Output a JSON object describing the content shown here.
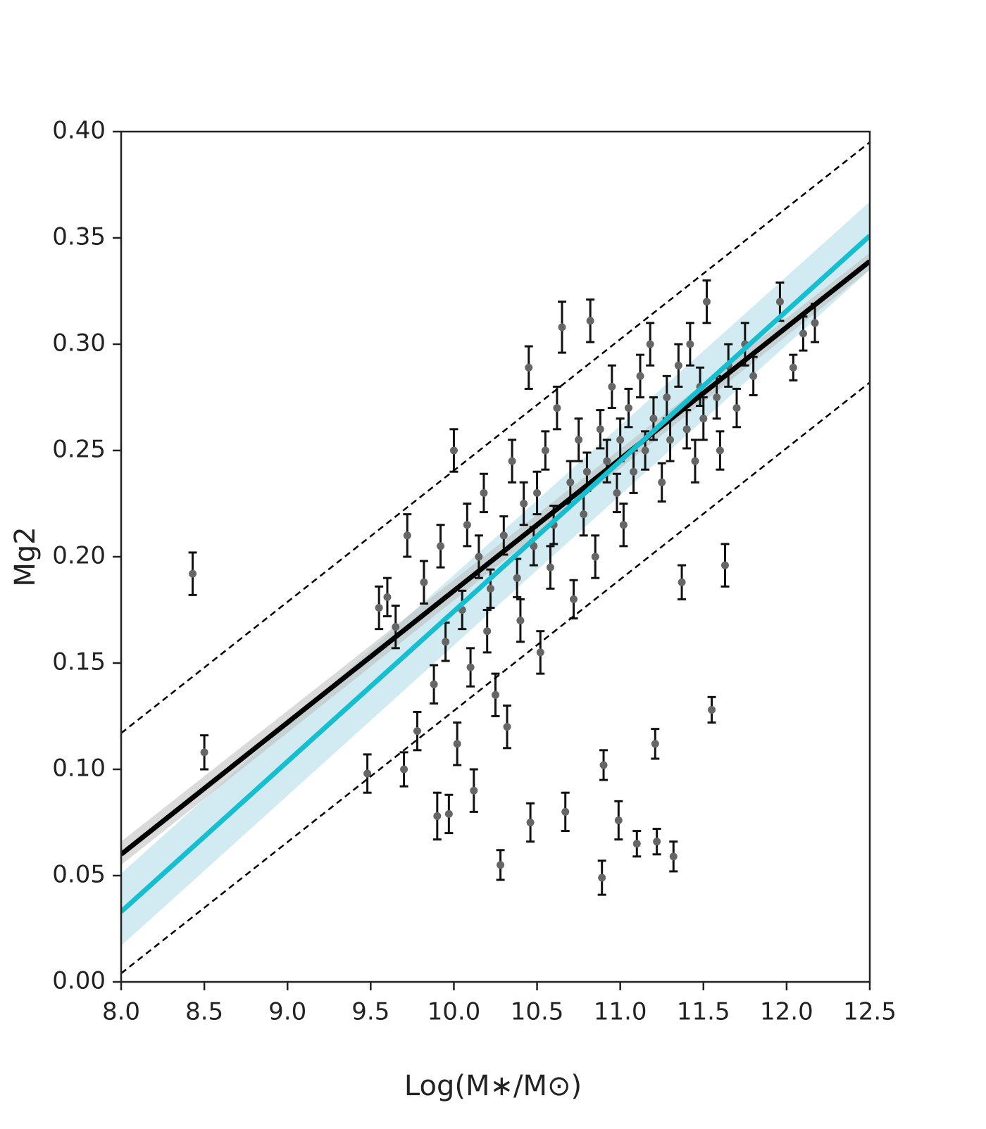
{
  "chart_data": {
    "type": "scatter",
    "xlabel": "Log(M∗/M⊙)",
    "ylabel": "Mg2",
    "xlim": [
      8.0,
      12.5
    ],
    "ylim": [
      0.0,
      0.4
    ],
    "xticks": [
      {
        "value": 8.0,
        "label": "8.0"
      },
      {
        "value": 8.5,
        "label": "8.5"
      },
      {
        "value": 9.0,
        "label": "9.0"
      },
      {
        "value": 9.5,
        "label": "9.5"
      },
      {
        "value": 10.0,
        "label": "10.0"
      },
      {
        "value": 10.5,
        "label": "10.5"
      },
      {
        "value": 11.0,
        "label": "11.0"
      },
      {
        "value": 11.5,
        "label": "11.5"
      },
      {
        "value": 12.0,
        "label": "12.0"
      },
      {
        "value": 12.5,
        "label": "12.5"
      }
    ],
    "yticks": [
      {
        "value": 0.0,
        "label": "0.00"
      },
      {
        "value": 0.05,
        "label": "0.05"
      },
      {
        "value": 0.1,
        "label": "0.10"
      },
      {
        "value": 0.15,
        "label": "0.15"
      },
      {
        "value": 0.2,
        "label": "0.20"
      },
      {
        "value": 0.25,
        "label": "0.25"
      },
      {
        "value": 0.3,
        "label": "0.30"
      },
      {
        "value": 0.35,
        "label": "0.35"
      },
      {
        "value": 0.4,
        "label": "0.40"
      }
    ],
    "point_color": "#666666",
    "error_color": "#111111",
    "fit_x": [
      8.0,
      12.5
    ],
    "bands": [
      {
        "color": "#add8e6",
        "lower": [
          0.017,
          0.335
        ],
        "upper": [
          0.051,
          0.367
        ]
      },
      {
        "color": "#bbbbbb",
        "lower": [
          0.055,
          0.335
        ],
        "upper": [
          0.066,
          0.343
        ]
      }
    ],
    "fits": [
      {
        "color": "#000000",
        "style": "solid",
        "values": [
          0.06,
          0.339
        ]
      },
      {
        "color": "#17becf",
        "style": "solid",
        "values": [
          0.033,
          0.351
        ]
      },
      {
        "color": "#000000",
        "style": "dashed",
        "values": [
          0.117,
          0.395
        ]
      },
      {
        "color": "#000000",
        "style": "dashed",
        "values": [
          0.004,
          0.282
        ]
      }
    ],
    "points": [
      {
        "x": 8.43,
        "y": 0.192,
        "err": 0.01
      },
      {
        "x": 8.5,
        "y": 0.108,
        "err": 0.008
      },
      {
        "x": 9.48,
        "y": 0.098,
        "err": 0.009
      },
      {
        "x": 9.55,
        "y": 0.176,
        "err": 0.01
      },
      {
        "x": 9.6,
        "y": 0.181,
        "err": 0.009
      },
      {
        "x": 9.65,
        "y": 0.167,
        "err": 0.01
      },
      {
        "x": 9.7,
        "y": 0.1,
        "err": 0.008
      },
      {
        "x": 9.72,
        "y": 0.21,
        "err": 0.01
      },
      {
        "x": 9.78,
        "y": 0.118,
        "err": 0.009
      },
      {
        "x": 9.82,
        "y": 0.188,
        "err": 0.01
      },
      {
        "x": 9.88,
        "y": 0.14,
        "err": 0.009
      },
      {
        "x": 9.9,
        "y": 0.078,
        "err": 0.011
      },
      {
        "x": 9.92,
        "y": 0.205,
        "err": 0.01
      },
      {
        "x": 9.95,
        "y": 0.16,
        "err": 0.009
      },
      {
        "x": 9.97,
        "y": 0.079,
        "err": 0.009
      },
      {
        "x": 10.0,
        "y": 0.25,
        "err": 0.01
      },
      {
        "x": 10.02,
        "y": 0.112,
        "err": 0.01
      },
      {
        "x": 10.05,
        "y": 0.175,
        "err": 0.009
      },
      {
        "x": 10.08,
        "y": 0.215,
        "err": 0.01
      },
      {
        "x": 10.1,
        "y": 0.148,
        "err": 0.009
      },
      {
        "x": 10.12,
        "y": 0.09,
        "err": 0.01
      },
      {
        "x": 10.15,
        "y": 0.2,
        "err": 0.01
      },
      {
        "x": 10.18,
        "y": 0.23,
        "err": 0.009
      },
      {
        "x": 10.2,
        "y": 0.165,
        "err": 0.01
      },
      {
        "x": 10.22,
        "y": 0.185,
        "err": 0.009
      },
      {
        "x": 10.25,
        "y": 0.135,
        "err": 0.01
      },
      {
        "x": 10.28,
        "y": 0.055,
        "err": 0.007
      },
      {
        "x": 10.3,
        "y": 0.21,
        "err": 0.009
      },
      {
        "x": 10.32,
        "y": 0.12,
        "err": 0.01
      },
      {
        "x": 10.35,
        "y": 0.245,
        "err": 0.01
      },
      {
        "x": 10.38,
        "y": 0.19,
        "err": 0.009
      },
      {
        "x": 10.4,
        "y": 0.17,
        "err": 0.01
      },
      {
        "x": 10.42,
        "y": 0.225,
        "err": 0.01
      },
      {
        "x": 10.45,
        "y": 0.289,
        "err": 0.01
      },
      {
        "x": 10.46,
        "y": 0.075,
        "err": 0.009
      },
      {
        "x": 10.48,
        "y": 0.205,
        "err": 0.009
      },
      {
        "x": 10.5,
        "y": 0.23,
        "err": 0.01
      },
      {
        "x": 10.52,
        "y": 0.155,
        "err": 0.01
      },
      {
        "x": 10.55,
        "y": 0.25,
        "err": 0.009
      },
      {
        "x": 10.58,
        "y": 0.195,
        "err": 0.01
      },
      {
        "x": 10.6,
        "y": 0.215,
        "err": 0.009
      },
      {
        "x": 10.62,
        "y": 0.27,
        "err": 0.01
      },
      {
        "x": 10.65,
        "y": 0.308,
        "err": 0.012
      },
      {
        "x": 10.67,
        "y": 0.08,
        "err": 0.009
      },
      {
        "x": 10.7,
        "y": 0.235,
        "err": 0.01
      },
      {
        "x": 10.72,
        "y": 0.18,
        "err": 0.009
      },
      {
        "x": 10.75,
        "y": 0.255,
        "err": 0.01
      },
      {
        "x": 10.78,
        "y": 0.22,
        "err": 0.01
      },
      {
        "x": 10.8,
        "y": 0.24,
        "err": 0.009
      },
      {
        "x": 10.82,
        "y": 0.311,
        "err": 0.01
      },
      {
        "x": 10.85,
        "y": 0.2,
        "err": 0.01
      },
      {
        "x": 10.88,
        "y": 0.26,
        "err": 0.009
      },
      {
        "x": 10.89,
        "y": 0.049,
        "err": 0.008
      },
      {
        "x": 10.9,
        "y": 0.102,
        "err": 0.007
      },
      {
        "x": 10.92,
        "y": 0.245,
        "err": 0.01
      },
      {
        "x": 10.95,
        "y": 0.28,
        "err": 0.01
      },
      {
        "x": 10.98,
        "y": 0.23,
        "err": 0.009
      },
      {
        "x": 10.99,
        "y": 0.076,
        "err": 0.009
      },
      {
        "x": 11.0,
        "y": 0.255,
        "err": 0.01
      },
      {
        "x": 11.02,
        "y": 0.215,
        "err": 0.01
      },
      {
        "x": 11.05,
        "y": 0.27,
        "err": 0.009
      },
      {
        "x": 11.08,
        "y": 0.24,
        "err": 0.01
      },
      {
        "x": 11.1,
        "y": 0.065,
        "err": 0.006
      },
      {
        "x": 11.12,
        "y": 0.285,
        "err": 0.01
      },
      {
        "x": 11.15,
        "y": 0.25,
        "err": 0.009
      },
      {
        "x": 11.18,
        "y": 0.3,
        "err": 0.01
      },
      {
        "x": 11.2,
        "y": 0.265,
        "err": 0.01
      },
      {
        "x": 11.21,
        "y": 0.112,
        "err": 0.007
      },
      {
        "x": 11.22,
        "y": 0.066,
        "err": 0.006
      },
      {
        "x": 11.25,
        "y": 0.235,
        "err": 0.009
      },
      {
        "x": 11.28,
        "y": 0.275,
        "err": 0.01
      },
      {
        "x": 11.3,
        "y": 0.255,
        "err": 0.01
      },
      {
        "x": 11.32,
        "y": 0.059,
        "err": 0.007
      },
      {
        "x": 11.35,
        "y": 0.29,
        "err": 0.01
      },
      {
        "x": 11.37,
        "y": 0.188,
        "err": 0.008
      },
      {
        "x": 11.4,
        "y": 0.26,
        "err": 0.009
      },
      {
        "x": 11.42,
        "y": 0.3,
        "err": 0.01
      },
      {
        "x": 11.45,
        "y": 0.245,
        "err": 0.01
      },
      {
        "x": 11.48,
        "y": 0.28,
        "err": 0.009
      },
      {
        "x": 11.5,
        "y": 0.265,
        "err": 0.01
      },
      {
        "x": 11.52,
        "y": 0.32,
        "err": 0.01
      },
      {
        "x": 11.55,
        "y": 0.128,
        "err": 0.006
      },
      {
        "x": 11.58,
        "y": 0.275,
        "err": 0.01
      },
      {
        "x": 11.6,
        "y": 0.25,
        "err": 0.009
      },
      {
        "x": 11.63,
        "y": 0.196,
        "err": 0.01
      },
      {
        "x": 11.65,
        "y": 0.29,
        "err": 0.01
      },
      {
        "x": 11.7,
        "y": 0.27,
        "err": 0.009
      },
      {
        "x": 11.75,
        "y": 0.3,
        "err": 0.01
      },
      {
        "x": 11.8,
        "y": 0.285,
        "err": 0.009
      },
      {
        "x": 11.96,
        "y": 0.32,
        "err": 0.009
      },
      {
        "x": 12.04,
        "y": 0.289,
        "err": 0.006
      },
      {
        "x": 12.1,
        "y": 0.305,
        "err": 0.008
      },
      {
        "x": 12.17,
        "y": 0.31,
        "err": 0.009
      }
    ]
  }
}
